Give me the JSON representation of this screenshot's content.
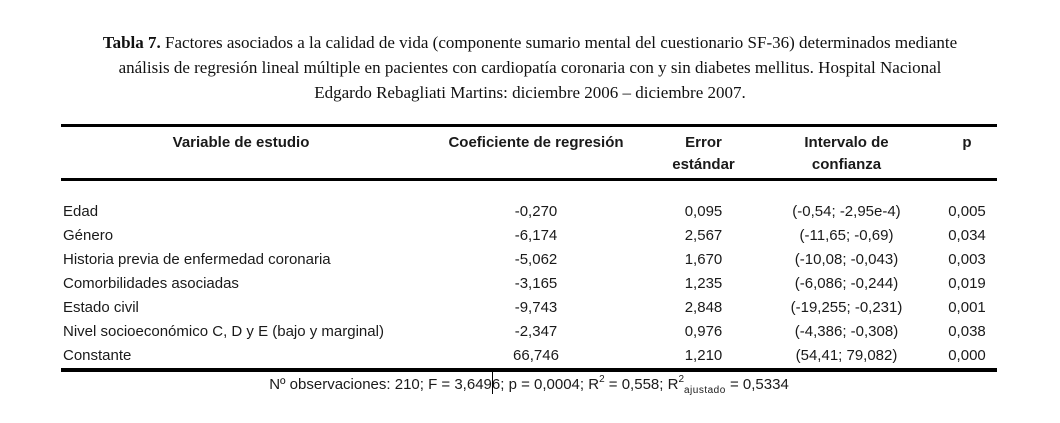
{
  "title": {
    "label_bold": "Tabla 7.",
    "text": " Factores asociados a la calidad de vida (componente sumario mental del cuestionario SF-36) determinados mediante análisis de regresión lineal múltiple en pacientes con cardiopatía coronaria con y sin diabetes mellitus. Hospital Nacional Edgardo Rebagliati Martins: diciembre 2006 – diciembre 2007."
  },
  "table": {
    "headers": {
      "variable": "Variable de estudio",
      "coefficient": "Coeficiente de regresión",
      "error_line1": "Error",
      "error_line2": "estándar",
      "interval_line1": "Intervalo de",
      "interval_line2": "confianza",
      "p": "p"
    },
    "rows": [
      {
        "variable": "Edad",
        "coefficient": "-0,270",
        "error": "0,095",
        "interval": "(-0,54; -2,95e-4)",
        "p": "0,005"
      },
      {
        "variable": "Género",
        "coefficient": "-6,174",
        "error": "2,567",
        "interval": "(-11,65; -0,69)",
        "p": "0,034"
      },
      {
        "variable": "Historia previa de enfermedad coronaria",
        "coefficient": "-5,062",
        "error": "1,670",
        "interval": "(-10,08; -0,043)",
        "p": "0,003"
      },
      {
        "variable": "Comorbilidades asociadas",
        "coefficient": "-3,165",
        "error": "1,235",
        "interval": "(-6,086; -0,244)",
        "p": "0,019"
      },
      {
        "variable": "Estado civil",
        "coefficient": "-9,743",
        "error": "2,848",
        "interval": "(-19,255; -0,231)",
        "p": "0,001"
      },
      {
        "variable": "Nivel socioeconómico C, D y E (bajo y marginal)",
        "coefficient": "-2,347",
        "error": "0,976",
        "interval": "(-4,386; -0,308)",
        "p": "0,038"
      },
      {
        "variable": "Constante",
        "coefficient": "66,746",
        "error": "1,210",
        "interval": "(54,41; 79,082)",
        "p": "0,000"
      }
    ]
  },
  "footnote": {
    "part1": "Nº observaciones: 210;  F = 3,649",
    "part2": "6; p = 0,0004; R",
    "sup1": "2",
    "part3": " = 0,558; R",
    "sup2": "2",
    "subscript": "ajustado",
    "part4": " = 0,5334"
  },
  "colors": {
    "background": "#ffffff",
    "text": "#1a1a1a",
    "rule": "#000000"
  }
}
